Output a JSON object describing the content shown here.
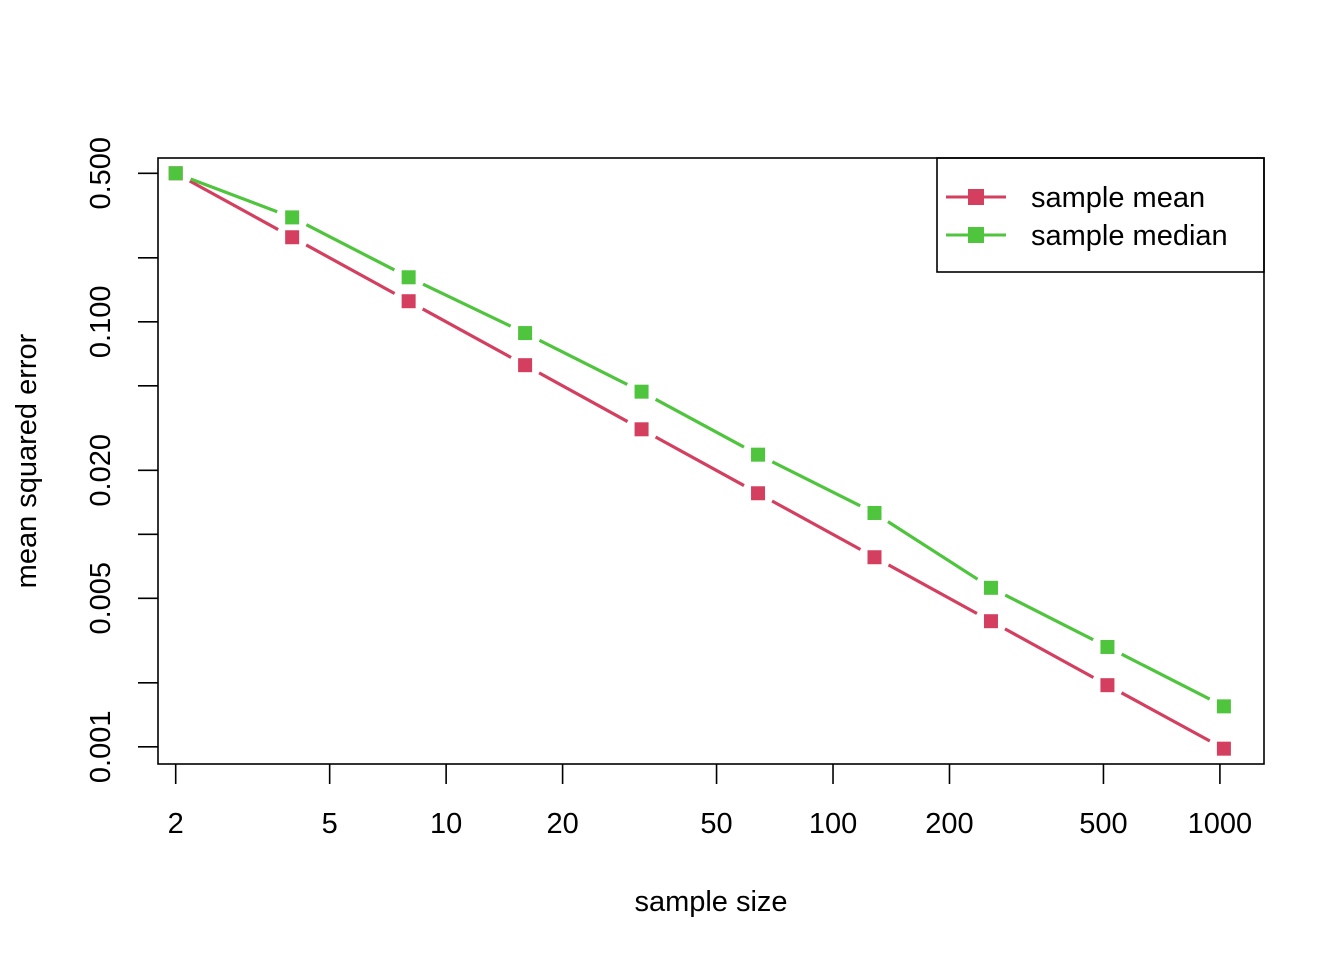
{
  "chart_data": {
    "type": "line",
    "title": "",
    "xlabel": "sample size",
    "ylabel": "mean squared error",
    "xscale": "log",
    "yscale": "log",
    "xlim": [
      1.8,
      1300
    ],
    "ylim": [
      0.00083,
      0.59
    ],
    "xticks": [
      {
        "value": 2,
        "label": "2"
      },
      {
        "value": 5,
        "label": "5"
      },
      {
        "value": 10,
        "label": "10"
      },
      {
        "value": 20,
        "label": "20"
      },
      {
        "value": 50,
        "label": "50"
      },
      {
        "value": 100,
        "label": "100"
      },
      {
        "value": 200,
        "label": "200"
      },
      {
        "value": 500,
        "label": "500"
      },
      {
        "value": 1000,
        "label": "1000"
      }
    ],
    "yticks": [
      {
        "value": 0.001,
        "label": "0.001"
      },
      {
        "value": 0.002,
        "label": ""
      },
      {
        "value": 0.005,
        "label": "0.005"
      },
      {
        "value": 0.01,
        "label": ""
      },
      {
        "value": 0.02,
        "label": "0.020"
      },
      {
        "value": 0.05,
        "label": ""
      },
      {
        "value": 0.1,
        "label": "0.100"
      },
      {
        "value": 0.2,
        "label": ""
      },
      {
        "value": 0.5,
        "label": "0.500"
      }
    ],
    "grid": false,
    "legend": "top-right",
    "x": [
      2,
      4,
      8,
      16,
      32,
      64,
      128,
      256,
      512,
      1024
    ],
    "series": [
      {
        "name": "sample mean",
        "color": "#d43f5f",
        "values": [
          0.5,
          0.25,
          0.125,
          0.0625,
          0.0312,
          0.0156,
          0.0078,
          0.0039,
          0.00195,
          0.00098
        ]
      },
      {
        "name": "sample median",
        "color": "#4fc43d",
        "values": [
          0.5,
          0.31,
          0.162,
          0.0885,
          0.0469,
          0.0237,
          0.0126,
          0.0056,
          0.00295,
          0.00155
        ]
      }
    ]
  }
}
